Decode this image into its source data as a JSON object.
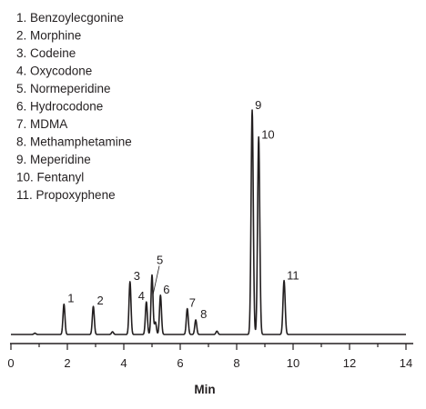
{
  "chart_data": {
    "type": "line",
    "xlabel": "Min",
    "ylabel": "",
    "xlim": [
      0,
      14
    ],
    "ylim": [
      0,
      100
    ],
    "x_ticks": [
      0,
      2,
      4,
      6,
      8,
      10,
      12,
      14
    ],
    "grid": false,
    "legend_position": "top-left",
    "legend": [
      "1. Benzoylecgonine",
      "2. Morphine",
      "3. Codeine",
      "4. Oxycodone",
      "5. Normeperidine",
      "6. Hydrocodone",
      "7. MDMA",
      "8. Methamphetamine",
      "9. Meperidine",
      "10. Fentanyl",
      "11. Propoxyphene"
    ],
    "peaks": [
      {
        "label": "1",
        "rt": 1.88,
        "height": 13.5
      },
      {
        "label": "2",
        "rt": 2.92,
        "height": 12.5
      },
      {
        "label": "3",
        "rt": 4.22,
        "height": 23.5
      },
      {
        "label": "4",
        "rt": 4.8,
        "height": 14.5
      },
      {
        "label": "5",
        "rt": 5.0,
        "height": 26.5
      },
      {
        "label": "6",
        "rt": 5.3,
        "height": 17.5
      },
      {
        "label": "7",
        "rt": 6.25,
        "height": 11.5
      },
      {
        "label": "8",
        "rt": 6.55,
        "height": 6.5
      },
      {
        "label": "9",
        "rt": 8.55,
        "height": 100
      },
      {
        "label": "10",
        "rt": 8.78,
        "height": 88
      },
      {
        "label": "11",
        "rt": 9.68,
        "height": 24
      }
    ]
  }
}
